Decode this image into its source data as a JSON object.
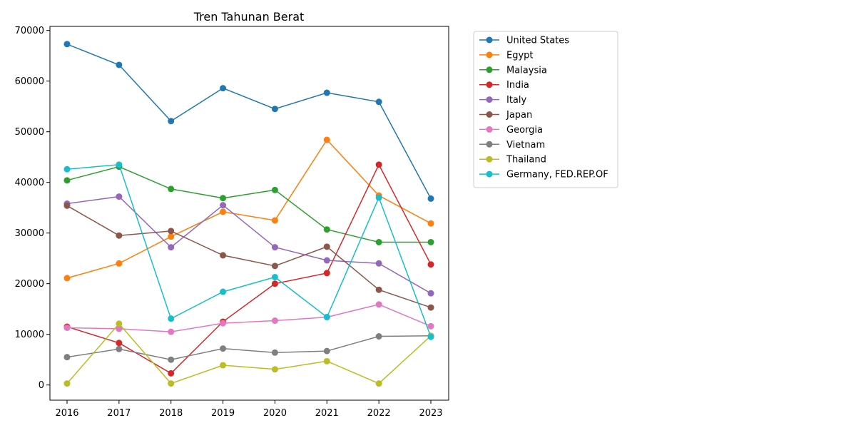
{
  "chart_data": {
    "type": "line",
    "title": "Tren Tahunan Berat",
    "xlabel": "",
    "ylabel": "",
    "x": [
      "2016",
      "2017",
      "2018",
      "2019",
      "2020",
      "2021",
      "2022",
      "2023"
    ],
    "ylim": [
      -3000,
      70800
    ],
    "yticks": [
      0,
      10000,
      20000,
      30000,
      40000,
      50000,
      60000,
      70000
    ],
    "grid": false,
    "legend_position": "outside right, top",
    "series": [
      {
        "name": "United States",
        "color": "#1f77b4",
        "values": [
          67300,
          63200,
          52100,
          58600,
          54500,
          57700,
          55900,
          36800
        ]
      },
      {
        "name": "Egypt",
        "color": "#ff7f0e",
        "values": [
          21100,
          24000,
          29300,
          34200,
          32500,
          48400,
          37400,
          31900
        ]
      },
      {
        "name": "Malaysia",
        "color": "#2ca02c",
        "values": [
          40400,
          43100,
          38700,
          36900,
          38500,
          30700,
          28200,
          28200
        ]
      },
      {
        "name": "India",
        "color": "#d62728",
        "values": [
          11500,
          8300,
          2300,
          12500,
          20000,
          22100,
          43500,
          23800
        ]
      },
      {
        "name": "Italy",
        "color": "#9467bd",
        "values": [
          35800,
          37200,
          27200,
          35500,
          27200,
          24600,
          24000,
          18100
        ]
      },
      {
        "name": "Japan",
        "color": "#8c564b",
        "values": [
          35400,
          29500,
          30400,
          25600,
          23500,
          27300,
          18800,
          15300
        ]
      },
      {
        "name": "Georgia",
        "color": "#e377c2",
        "values": [
          11300,
          11100,
          10500,
          12200,
          12700,
          13400,
          15900,
          11600
        ]
      },
      {
        "name": "Vietnam",
        "color": "#7f7f7f",
        "values": [
          5500,
          7100,
          5000,
          7200,
          6400,
          6700,
          9600,
          9700
        ]
      },
      {
        "name": "Thailand",
        "color": "#bcbd22",
        "values": [
          300,
          12100,
          300,
          3900,
          3100,
          4700,
          300,
          9700
        ]
      },
      {
        "name": "Germany, FED.REP.OF",
        "color": "#17becf",
        "values": [
          42600,
          43500,
          13100,
          18400,
          21300,
          13400,
          37000,
          9500
        ]
      }
    ]
  }
}
